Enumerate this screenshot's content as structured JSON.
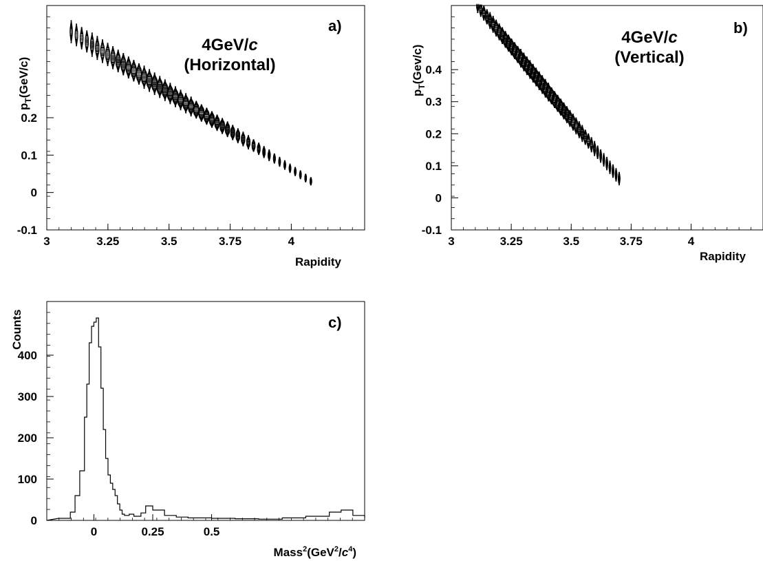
{
  "chart_data": [
    {
      "panel": "a",
      "type": "scatter",
      "tag": "a)",
      "title_line1": "4GeV/",
      "title_italic": "c",
      "title_line2": "(Horizontal)",
      "ylabel_p": "p",
      "ylabel_sub": "T",
      "ylabel_rest": "(GeV/c)",
      "xlabel": "Rapidity",
      "xlim": [
        3.0,
        4.3
      ],
      "ylim": [
        -0.1,
        0.5
      ],
      "xticks": [
        "3",
        "3.25",
        "3.5",
        "3.75",
        "4"
      ],
      "yticks": [
        "-0.1",
        "0",
        "0.1",
        "0.2"
      ],
      "band": {
        "x_start": 3.1,
        "x_end": 4.08,
        "y_start": 0.43,
        "y_end": 0.03,
        "half_width_start": 0.04,
        "half_width_end": 0.015
      },
      "grid": false
    },
    {
      "panel": "b",
      "type": "scatter",
      "tag": "b)",
      "title_line1": "4GeV/",
      "title_italic": "c",
      "title_line2": "(Vertical)",
      "ylabel_p": "p",
      "ylabel_sub": "T",
      "ylabel_rest": "(Gev/c)",
      "xlabel": "Rapidity",
      "xlim": [
        3.0,
        4.3
      ],
      "ylim": [
        -0.1,
        0.6
      ],
      "xticks": [
        "3",
        "3.25",
        "3.5",
        "3.75",
        "4"
      ],
      "yticks": [
        "-0.1",
        "0",
        "0.1",
        "0.2",
        "0.3",
        "0.4"
      ],
      "band": {
        "x_start": 3.11,
        "x_end": 3.7,
        "y_start": 0.6,
        "y_end": 0.06,
        "half_width_start": 0.03,
        "half_width_end": 0.03
      },
      "grid": false
    },
    {
      "panel": "c",
      "type": "histogram",
      "tag": "c)",
      "ylabel": "Counts",
      "xlabel_main": "Mass",
      "xlabel_sup": "2",
      "xlabel_open": "(GeV",
      "xlabel_sup2": "2",
      "xlabel_slash": "/",
      "xlabel_c": "c",
      "xlabel_sup4": "4",
      "xlabel_close": ")",
      "xlim": [
        -0.2,
        1.15
      ],
      "ylim": [
        0,
        530
      ],
      "xticks": [
        "0",
        "0.25",
        "0.5"
      ],
      "yticks": [
        "0",
        "100",
        "200",
        "300",
        "400"
      ],
      "bins": {
        "x": [
          -0.15,
          -0.1,
          -0.08,
          -0.06,
          -0.04,
          -0.03,
          -0.02,
          -0.01,
          0.0,
          0.01,
          0.02,
          0.03,
          0.04,
          0.05,
          0.06,
          0.07,
          0.08,
          0.09,
          0.1,
          0.11,
          0.12,
          0.13,
          0.15,
          0.17,
          0.2,
          0.22,
          0.25,
          0.3,
          0.35,
          0.4,
          0.5,
          0.6,
          0.7,
          0.8,
          0.9,
          1.0,
          1.05,
          1.1,
          1.15
        ],
        "counts": [
          5,
          20,
          60,
          120,
          250,
          330,
          430,
          470,
          480,
          490,
          420,
          320,
          220,
          150,
          110,
          90,
          75,
          60,
          40,
          25,
          15,
          12,
          15,
          10,
          18,
          35,
          25,
          12,
          8,
          6,
          5,
          4,
          3,
          6,
          10,
          20,
          25,
          12,
          6
        ]
      },
      "grid": false
    }
  ]
}
